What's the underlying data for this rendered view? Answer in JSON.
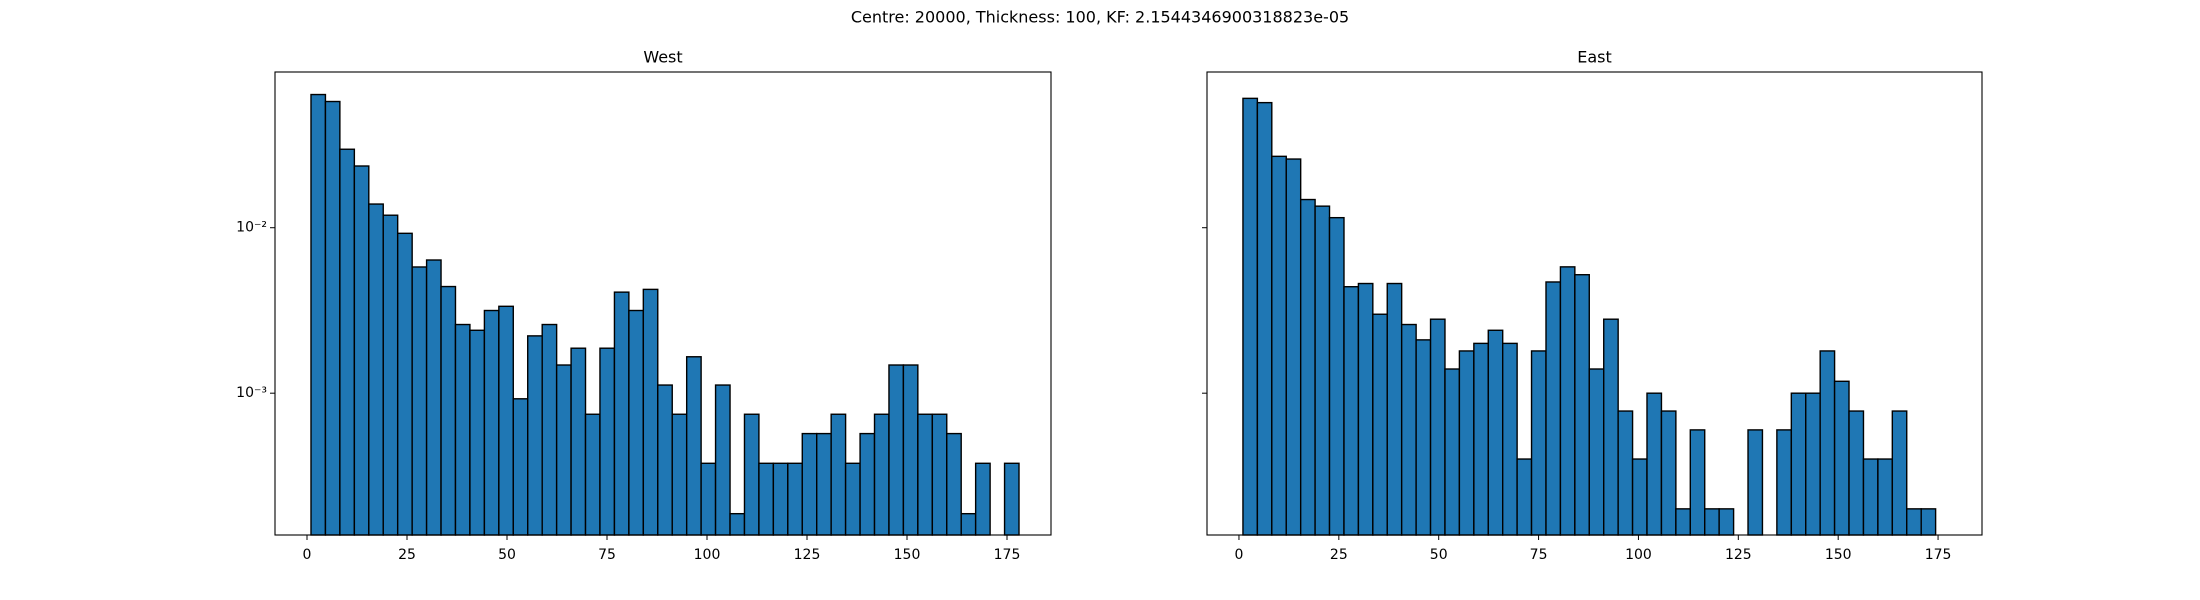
{
  "title": "Centre: 20000, Thickness: 100, KF: 2.1544346900318823e-05",
  "chart_data": [
    {
      "type": "histogram",
      "title": "West",
      "color": "#1f77b4",
      "edgecolor": "#000000",
      "log_y": true,
      "show_ytick_labels": true,
      "bins": [
        1,
        4.61,
        8.22,
        11.84,
        15.45,
        19.06,
        22.67,
        26.29,
        29.9,
        33.51,
        37.12,
        40.73,
        44.35,
        47.96,
        51.57,
        55.18,
        58.8,
        62.41,
        66.02,
        69.63,
        73.24,
        76.86,
        80.47,
        84.08,
        87.69,
        91.31,
        94.92,
        98.53,
        102.14,
        105.76,
        109.37,
        112.98,
        116.59,
        120.2,
        123.82,
        127.43,
        131.04,
        134.65,
        138.27,
        141.88,
        145.49,
        149.1,
        152.71,
        156.33,
        159.94,
        163.55,
        167.16,
        170.78,
        174.39,
        178
      ],
      "values": [
        0.0638,
        0.0579,
        0.0298,
        0.0236,
        0.0139,
        0.0119,
        0.00925,
        0.00579,
        0.00638,
        0.00441,
        0.0026,
        0.0024,
        0.00316,
        0.00335,
        0.000925,
        0.00222,
        0.0026,
        0.00148,
        0.00187,
        0.000746,
        0.00187,
        0.00408,
        0.00316,
        0.00424,
        0.00112,
        0.000746,
        0.00166,
        0.000377,
        0.00112,
        0.000187,
        0.000746,
        0.000377,
        0.000377,
        0.000377,
        0.00057,
        0.00057,
        0.000746,
        0.000377,
        0.00057,
        0.000746,
        0.00148,
        0.00148,
        0.000746,
        0.000746,
        0.00057,
        0.000187,
        0.000377,
        0,
        0.000377
      ],
      "xlim": [
        -8,
        186
      ],
      "xticks": [
        0,
        25,
        50,
        75,
        100,
        125,
        150,
        175
      ],
      "ylim": [
        0.000139,
        0.0873
      ],
      "yticks": [
        {
          "value": 0.001,
          "label": "10⁻³"
        },
        {
          "value": 0.01,
          "label": "10⁻²"
        }
      ]
    },
    {
      "type": "histogram",
      "title": "East",
      "color": "#1f77b4",
      "edgecolor": "#000000",
      "log_y": true,
      "show_ytick_labels": false,
      "bins": [
        1,
        4.61,
        8.22,
        11.84,
        15.45,
        19.06,
        22.67,
        26.29,
        29.9,
        33.51,
        37.12,
        40.73,
        44.35,
        47.96,
        51.57,
        55.18,
        58.8,
        62.41,
        66.02,
        69.63,
        73.24,
        76.86,
        80.47,
        84.08,
        87.69,
        91.31,
        94.92,
        98.53,
        102.14,
        105.76,
        109.37,
        112.98,
        116.59,
        120.2,
        123.82,
        127.43,
        131.04,
        134.65,
        138.27,
        141.88,
        145.49,
        149.1,
        152.71,
        156.33,
        159.94,
        163.55,
        167.16,
        170.78,
        174.39
      ],
      "values": [
        0.0605,
        0.057,
        0.027,
        0.026,
        0.0148,
        0.0135,
        0.0115,
        0.0044,
        0.0046,
        0.003,
        0.0046,
        0.0026,
        0.0021,
        0.0028,
        0.0014,
        0.0018,
        0.002,
        0.0024,
        0.002,
        0.0004,
        0.0018,
        0.0047,
        0.0058,
        0.0052,
        0.0014,
        0.0028,
        0.00078,
        0.0004,
        0.001,
        0.00078,
        0.0002,
        0.0006,
        0.0002,
        0.0002,
        0,
        0.0006,
        0,
        0.0006,
        0.001,
        0.001,
        0.0018,
        0.00118,
        0.00078,
        0.0004,
        0.0004,
        0.00078,
        0.0002,
        0.0002
      ],
      "xlim": [
        -8,
        186
      ],
      "xticks": [
        0,
        25,
        50,
        75,
        100,
        125,
        150,
        175
      ],
      "ylim": [
        0.000139,
        0.0873
      ],
      "yticks": [
        0.001,
        0.01
      ]
    }
  ]
}
